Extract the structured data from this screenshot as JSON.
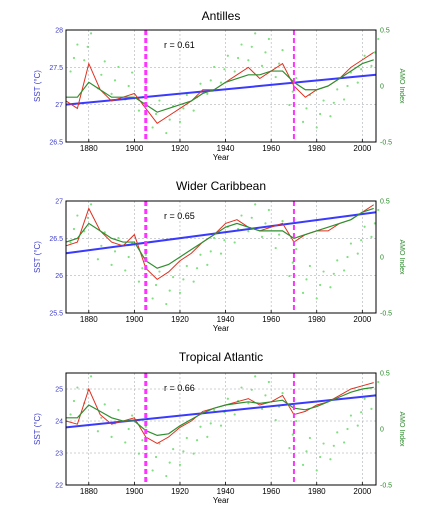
{
  "colors": {
    "sst_line": "#e03020",
    "smooth_line": "#2f8f2f",
    "amo_dots": "#7fe07f",
    "trend_line": "#3a3aff",
    "vertical_marker": "#ff33ff",
    "grid": "#9aa0a6",
    "left_axis": "#3a3acc",
    "right_axis": "#2a8a2a"
  },
  "chart_data": [
    {
      "type": "line",
      "title": "Antilles",
      "correlation_label": "r = 0.61",
      "xlabel": "Year",
      "ylabel": "SST (°C)",
      "y2label": "AMO Index",
      "xlim": [
        1870,
        2006
      ],
      "ylim": [
        26.5,
        28.0
      ],
      "y2lim": [
        -0.5,
        0.5
      ],
      "xticks": [
        1880,
        1900,
        1920,
        1940,
        1960,
        1980,
        2000
      ],
      "yticks": [
        "26.5",
        "27",
        "27.5",
        "28"
      ],
      "y2ticks": [
        "-0.5",
        "0",
        "0.5"
      ],
      "vertical_markers": [
        1905,
        1970
      ],
      "trend": {
        "x": [
          1870,
          2006
        ],
        "y": [
          27.0,
          27.4
        ]
      },
      "series": [
        {
          "kind": "sst",
          "x": [
            1870,
            1875,
            1880,
            1885,
            1890,
            1895,
            1900,
            1905,
            1910,
            1915,
            1920,
            1925,
            1930,
            1935,
            1940,
            1945,
            1950,
            1955,
            1960,
            1965,
            1970,
            1975,
            1980,
            1985,
            1990,
            1995,
            2000,
            2005
          ],
          "y": [
            27.05,
            26.95,
            27.55,
            27.2,
            27.05,
            27.1,
            27.15,
            26.95,
            26.75,
            26.85,
            26.95,
            27.05,
            27.2,
            27.2,
            27.3,
            27.4,
            27.5,
            27.35,
            27.45,
            27.55,
            27.25,
            27.1,
            27.2,
            27.25,
            27.35,
            27.5,
            27.6,
            27.7
          ]
        },
        {
          "kind": "smooth",
          "x": [
            1870,
            1875,
            1880,
            1885,
            1890,
            1895,
            1900,
            1905,
            1910,
            1915,
            1920,
            1925,
            1930,
            1935,
            1940,
            1945,
            1950,
            1955,
            1960,
            1965,
            1970,
            1975,
            1980,
            1985,
            1990,
            1995,
            2000,
            2005
          ],
          "y": [
            27.1,
            27.1,
            27.3,
            27.2,
            27.1,
            27.1,
            27.1,
            27.0,
            26.9,
            26.95,
            27.0,
            27.05,
            27.15,
            27.2,
            27.3,
            27.35,
            27.4,
            27.4,
            27.45,
            27.45,
            27.3,
            27.2,
            27.2,
            27.25,
            27.35,
            27.45,
            27.55,
            27.6
          ]
        },
        {
          "kind": "amo",
          "x": [
            1872,
            1878,
            1884,
            1890,
            1896,
            1902,
            1908,
            1914,
            1920,
            1926,
            1932,
            1938,
            1944,
            1950,
            1956,
            1962,
            1968,
            1974,
            1980,
            1986,
            1992,
            1998,
            2004
          ],
          "y": [
            0.25,
            0.35,
            0.1,
            0.05,
            0.0,
            -0.1,
            -0.25,
            -0.3,
            -0.2,
            -0.1,
            0.05,
            0.15,
            0.25,
            0.35,
            0.3,
            0.2,
            -0.05,
            -0.2,
            -0.25,
            -0.15,
            0.0,
            0.15,
            0.3
          ]
        }
      ]
    },
    {
      "type": "line",
      "title": "Wider Caribbean",
      "correlation_label": "r = 0.65",
      "xlabel": "Year",
      "ylabel": "SST (°C)",
      "y2label": "AMO Index",
      "xlim": [
        1870,
        2006
      ],
      "ylim": [
        25.5,
        27.0
      ],
      "y2lim": [
        -0.5,
        0.5
      ],
      "xticks": [
        1880,
        1900,
        1920,
        1940,
        1960,
        1980,
        2000
      ],
      "yticks": [
        "25.5",
        "26",
        "26.5",
        "27"
      ],
      "y2ticks": [
        "-0.5",
        "0",
        "0.5"
      ],
      "vertical_markers": [
        1905,
        1970
      ],
      "trend": {
        "x": [
          1870,
          2006
        ],
        "y": [
          26.3,
          26.85
        ]
      },
      "series": [
        {
          "kind": "sst",
          "x": [
            1870,
            1875,
            1880,
            1885,
            1890,
            1895,
            1900,
            1905,
            1910,
            1915,
            1920,
            1925,
            1930,
            1935,
            1940,
            1945,
            1950,
            1955,
            1960,
            1965,
            1970,
            1975,
            1980,
            1985,
            1990,
            1995,
            2000,
            2005
          ],
          "y": [
            26.4,
            26.45,
            26.9,
            26.6,
            26.45,
            26.4,
            26.55,
            26.1,
            25.95,
            26.05,
            26.2,
            26.3,
            26.45,
            26.55,
            26.7,
            26.75,
            26.65,
            26.6,
            26.65,
            26.7,
            26.45,
            26.55,
            26.6,
            26.6,
            26.7,
            26.75,
            26.85,
            26.95
          ]
        },
        {
          "kind": "smooth",
          "x": [
            1870,
            1875,
            1880,
            1885,
            1890,
            1895,
            1900,
            1905,
            1910,
            1915,
            1920,
            1925,
            1930,
            1935,
            1940,
            1945,
            1950,
            1955,
            1960,
            1965,
            1970,
            1975,
            1980,
            1985,
            1990,
            1995,
            2000,
            2005
          ],
          "y": [
            26.45,
            26.5,
            26.7,
            26.6,
            26.5,
            26.45,
            26.45,
            26.2,
            26.1,
            26.15,
            26.25,
            26.35,
            26.45,
            26.55,
            26.65,
            26.7,
            26.65,
            26.6,
            26.6,
            26.6,
            26.5,
            26.55,
            26.6,
            26.65,
            26.7,
            26.75,
            26.85,
            26.9
          ]
        },
        {
          "kind": "amo",
          "x": [
            1872,
            1878,
            1884,
            1890,
            1896,
            1902,
            1908,
            1914,
            1920,
            1926,
            1932,
            1938,
            1944,
            1950,
            1956,
            1962,
            1968,
            1974,
            1980,
            1986,
            1992,
            1998,
            2004
          ],
          "y": [
            0.25,
            0.35,
            0.1,
            0.05,
            0.0,
            -0.1,
            -0.25,
            -0.3,
            -0.2,
            -0.1,
            0.05,
            0.15,
            0.25,
            0.35,
            0.3,
            0.2,
            -0.05,
            -0.2,
            -0.25,
            -0.15,
            0.0,
            0.15,
            0.3
          ]
        }
      ]
    },
    {
      "type": "line",
      "title": "Tropical Atlantic",
      "correlation_label": "r = 0.66",
      "xlabel": "Year",
      "ylabel": "SST (°C)",
      "y2label": "AMO Index",
      "xlim": [
        1870,
        2006
      ],
      "ylim": [
        22.0,
        25.5
      ],
      "y2lim": [
        -0.5,
        0.5
      ],
      "xticks": [
        1880,
        1900,
        1920,
        1940,
        1960,
        1980,
        2000
      ],
      "yticks": [
        "22",
        "23",
        "24",
        "25"
      ],
      "y2ticks": [
        "-0.5",
        "0",
        "0.5"
      ],
      "vertical_markers": [
        1905,
        1970
      ],
      "trend": {
        "x": [
          1870,
          2006
        ],
        "y": [
          23.8,
          24.8
        ]
      },
      "series": [
        {
          "kind": "sst",
          "x": [
            1870,
            1875,
            1880,
            1885,
            1890,
            1895,
            1900,
            1905,
            1910,
            1915,
            1920,
            1925,
            1930,
            1935,
            1940,
            1945,
            1950,
            1955,
            1960,
            1965,
            1970,
            1975,
            1980,
            1985,
            1990,
            1995,
            2000,
            2005
          ],
          "y": [
            24.0,
            23.9,
            25.0,
            24.2,
            23.9,
            24.0,
            24.1,
            23.5,
            23.3,
            23.5,
            23.8,
            24.0,
            24.3,
            24.4,
            24.5,
            24.6,
            24.7,
            24.5,
            24.6,
            24.8,
            24.2,
            24.3,
            24.5,
            24.6,
            24.8,
            25.0,
            25.1,
            25.2
          ]
        },
        {
          "kind": "smooth",
          "x": [
            1870,
            1875,
            1880,
            1885,
            1890,
            1895,
            1900,
            1905,
            1910,
            1915,
            1920,
            1925,
            1930,
            1935,
            1940,
            1945,
            1950,
            1955,
            1960,
            1965,
            1970,
            1975,
            1980,
            1985,
            1990,
            1995,
            2000,
            2005
          ],
          "y": [
            24.1,
            24.1,
            24.5,
            24.3,
            24.1,
            24.0,
            24.0,
            23.7,
            23.55,
            23.6,
            23.85,
            24.05,
            24.25,
            24.4,
            24.5,
            24.55,
            24.6,
            24.55,
            24.6,
            24.65,
            24.4,
            24.35,
            24.45,
            24.6,
            24.75,
            24.9,
            25.0,
            25.05
          ]
        },
        {
          "kind": "amo",
          "x": [
            1872,
            1878,
            1884,
            1890,
            1896,
            1902,
            1908,
            1914,
            1920,
            1926,
            1932,
            1938,
            1944,
            1950,
            1956,
            1962,
            1968,
            1974,
            1980,
            1986,
            1992,
            1998,
            2004
          ],
          "y": [
            0.25,
            0.35,
            0.1,
            0.05,
            0.0,
            -0.1,
            -0.25,
            -0.3,
            -0.2,
            -0.1,
            0.05,
            0.15,
            0.25,
            0.35,
            0.3,
            0.2,
            -0.05,
            -0.2,
            -0.25,
            -0.15,
            0.0,
            0.15,
            0.3
          ]
        }
      ]
    }
  ]
}
